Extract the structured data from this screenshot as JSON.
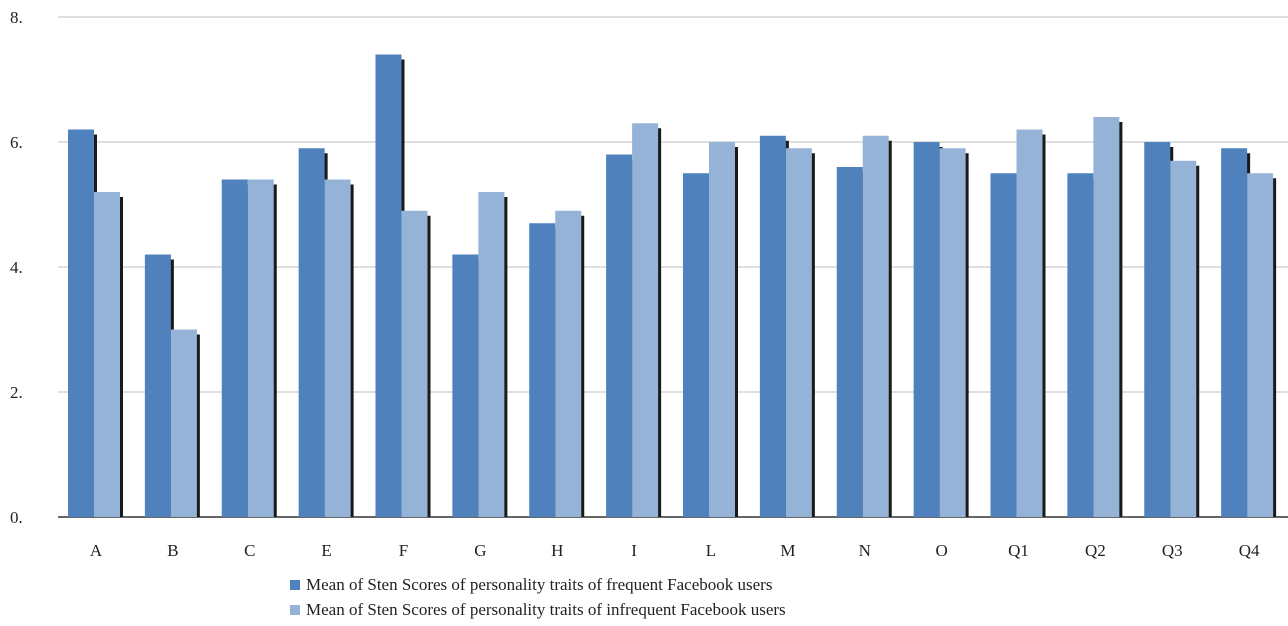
{
  "chart_data": {
    "type": "bar",
    "categories": [
      "A",
      "B",
      "C",
      "E",
      "F",
      "G",
      "H",
      "I",
      "L",
      "M",
      "N",
      "O",
      "Q1",
      "Q2",
      "Q3",
      "Q4"
    ],
    "series": [
      {
        "name": "Mean of Sten Scores of personality traits of frequent Facebook users",
        "color": "#4f81bd",
        "values": [
          6.2,
          4.2,
          5.4,
          5.9,
          7.4,
          4.2,
          4.7,
          5.8,
          5.5,
          6.1,
          5.6,
          6.0,
          5.5,
          5.5,
          6.0,
          5.9
        ]
      },
      {
        "name": "Mean of Sten Scores of personality traits of infrequent Facebook users",
        "color": "#95b3d7",
        "values": [
          5.2,
          3.0,
          5.4,
          5.4,
          4.9,
          5.2,
          4.9,
          6.3,
          6.0,
          5.9,
          6.1,
          5.9,
          6.2,
          6.4,
          5.7,
          5.5
        ]
      }
    ],
    "yticks": [
      "0.",
      "2.",
      "4.",
      "6.",
      "8."
    ],
    "ylim": [
      0,
      8
    ],
    "grid": true,
    "legend_position": "bottom",
    "title": "",
    "xlabel": "",
    "ylabel": ""
  }
}
